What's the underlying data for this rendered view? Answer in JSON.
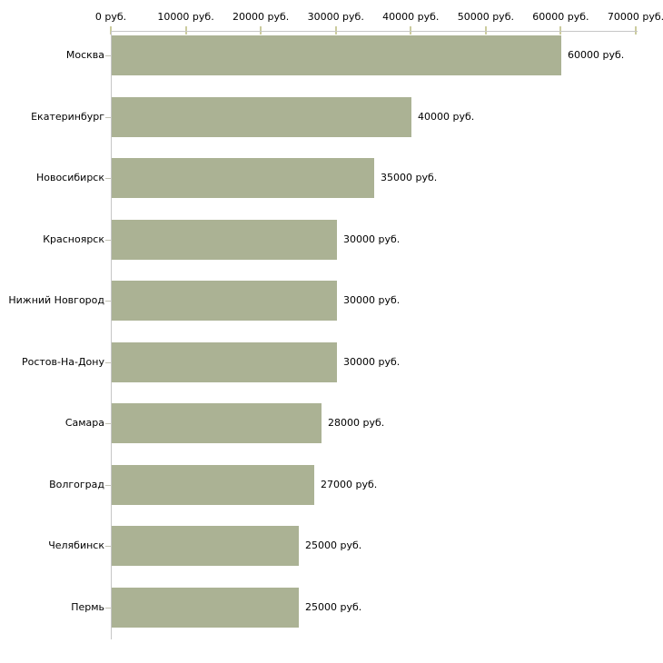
{
  "chart_data": {
    "type": "bar",
    "orientation": "horizontal",
    "title": "",
    "categories": [
      "Москва",
      "Екатеринбург",
      "Новосибирск",
      "Красноярск",
      "Нижний Новгород",
      "Ростов-На-Дону",
      "Самара",
      "Волгоград",
      "Челябинск",
      "Пермь"
    ],
    "values": [
      60000,
      40000,
      35000,
      30000,
      30000,
      30000,
      28000,
      27000,
      25000,
      25000
    ],
    "value_labels": [
      "60000 руб.",
      "40000 руб.",
      "35000 руб.",
      "30000 руб.",
      "30000 руб.",
      "30000 руб.",
      "28000 руб.",
      "27000 руб.",
      "25000 руб.",
      "25000 руб."
    ],
    "x_axis": {
      "position": "top",
      "range": [
        0,
        70000
      ],
      "ticks": [
        0,
        10000,
        20000,
        30000,
        40000,
        50000,
        60000,
        70000
      ],
      "tick_labels": [
        "0 руб.",
        "10000 руб.",
        "20000 руб.",
        "30000 руб.",
        "40000 руб.",
        "50000 руб.",
        "60000 руб.",
        "70000 руб."
      ],
      "unit": "руб."
    },
    "grid": false,
    "legend": null,
    "colors": {
      "bar": "#abb294",
      "axis_line": "#c6c6c6",
      "axis_tick": "#cccc9e",
      "category_tick": "#c2c2b4",
      "text": "#000000",
      "background": "#ffffff"
    }
  }
}
